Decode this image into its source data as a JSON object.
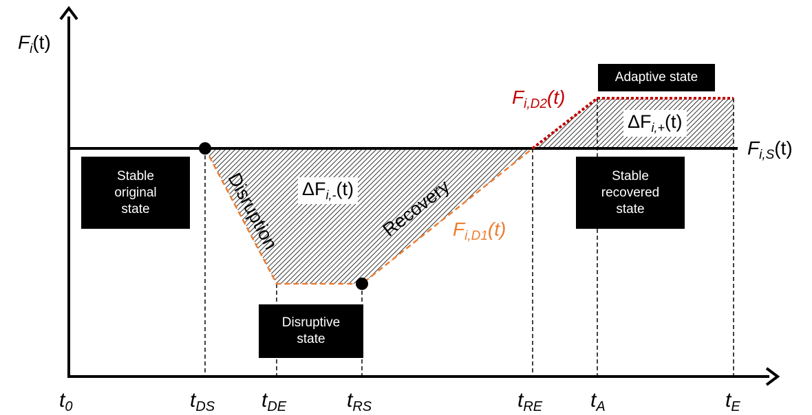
{
  "y_axis_label": {
    "base": "F",
    "sub": "i",
    "arg": "(t)"
  },
  "stable_line_label": {
    "base": "F",
    "sub": "i,S",
    "arg": "(t)"
  },
  "time_ticks": [
    {
      "base": "t",
      "sub": "0"
    },
    {
      "base": "t",
      "sub": "DS"
    },
    {
      "base": "t",
      "sub": "DE"
    },
    {
      "base": "t",
      "sub": "RS"
    },
    {
      "base": "t",
      "sub": "RE"
    },
    {
      "base": "t",
      "sub": "A"
    },
    {
      "base": "t",
      "sub": "E"
    }
  ],
  "state_boxes": {
    "stable_original": "Stable\noriginal\nstate",
    "disruptive": "Disruptive\nstate",
    "stable_recovered": "Stable\nrecovered\nstate",
    "adaptive": "Adaptive state"
  },
  "phase_labels": {
    "disruption": "Disruption",
    "recovery": "Recovery"
  },
  "area_labels": {
    "loss": {
      "prefix": "ΔF",
      "sub": "i,-",
      "arg": "(t)"
    },
    "gain": {
      "prefix": "ΔF",
      "sub": "i,+",
      "arg": "(t)"
    }
  },
  "curve_labels": {
    "d1": {
      "base": "F",
      "sub": "i,D1",
      "arg": "(t)"
    },
    "d2": {
      "base": "F",
      "sub": "i,D2",
      "arg": "(t)"
    }
  },
  "colors": {
    "d1": "#ed7d31",
    "d2": "#c00000",
    "axis": "#000000"
  }
}
